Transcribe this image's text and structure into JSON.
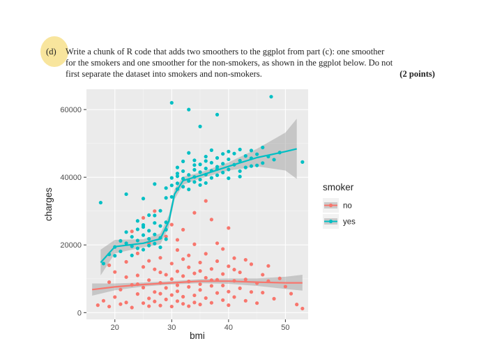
{
  "question": {
    "label": "(d)",
    "line1": "Write a chunk of R code that adds two smoothers to the ggplot from part (c): one smoother",
    "line2": "for the smokers and one smoother for the non-smokers, as shown in the ggplot below. Do not",
    "line3": "first separate the dataset into smokers and non-smokers.",
    "points": "(2 points)"
  },
  "colors": {
    "no": "#F8766D",
    "yes": "#00BFC4",
    "panel": "#EBEBEB",
    "ribbon": "#999999"
  },
  "chart_data": {
    "type": "scatter",
    "xlabel": "bmi",
    "ylabel": "charges",
    "xlim": [
      15,
      54
    ],
    "ylim": [
      -2000,
      66000
    ],
    "x_ticks": [
      20,
      30,
      40,
      50
    ],
    "y_ticks": [
      0,
      20000,
      40000,
      60000
    ],
    "y_tick_labels": [
      "0",
      "20000",
      "40000",
      "60000"
    ],
    "grid": true,
    "legend": {
      "title": "smoker",
      "position": "right",
      "entries": [
        "no",
        "yes"
      ]
    },
    "series": [
      {
        "name": "no",
        "smooth": [
          [
            16,
            6800
          ],
          [
            20,
            7600
          ],
          [
            25,
            8300
          ],
          [
            30,
            8800
          ],
          [
            35,
            9300
          ],
          [
            40,
            9300
          ],
          [
            45,
            9000
          ],
          [
            50,
            8800
          ],
          [
            53,
            8800
          ]
        ],
        "ribbon": [
          [
            16,
            5000,
            8600
          ],
          [
            20,
            6600,
            8600
          ],
          [
            25,
            7700,
            8900
          ],
          [
            30,
            8300,
            9300
          ],
          [
            35,
            8700,
            9900
          ],
          [
            40,
            8500,
            10100
          ],
          [
            45,
            7900,
            10100
          ],
          [
            50,
            7000,
            10600
          ],
          [
            53,
            6500,
            11200
          ]
        ],
        "points": [
          [
            17,
            2200
          ],
          [
            18,
            3500
          ],
          [
            19,
            1800
          ],
          [
            19,
            9000
          ],
          [
            20,
            4600
          ],
          [
            20,
            12000
          ],
          [
            21,
            2500
          ],
          [
            21,
            6800
          ],
          [
            22,
            10500
          ],
          [
            22,
            15000
          ],
          [
            22,
            3000
          ],
          [
            23,
            8200
          ],
          [
            23,
            24000
          ],
          [
            23,
            1500
          ],
          [
            24,
            5500
          ],
          [
            24,
            17500
          ],
          [
            24,
            11000
          ],
          [
            25,
            2800
          ],
          [
            25,
            7400
          ],
          [
            25,
            28000
          ],
          [
            25,
            13500
          ],
          [
            26,
            4200
          ],
          [
            26,
            9600
          ],
          [
            26,
            20500
          ],
          [
            26,
            1900
          ],
          [
            27,
            6100
          ],
          [
            27,
            12800
          ],
          [
            27,
            3300
          ],
          [
            27,
            30000
          ],
          [
            28,
            8800
          ],
          [
            28,
            2100
          ],
          [
            28,
            16200
          ],
          [
            28,
            5600
          ],
          [
            29,
            11200
          ],
          [
            29,
            3900
          ],
          [
            29,
            7300
          ],
          [
            29,
            22500
          ],
          [
            30,
            1800
          ],
          [
            30,
            9900
          ],
          [
            30,
            14500
          ],
          [
            30,
            5200
          ],
          [
            30,
            26000
          ],
          [
            31,
            3400
          ],
          [
            31,
            8100
          ],
          [
            31,
            12200
          ],
          [
            31,
            18500
          ],
          [
            31,
            6300
          ],
          [
            32,
            2600
          ],
          [
            32,
            10800
          ],
          [
            32,
            4700
          ],
          [
            32,
            15800
          ],
          [
            32,
            24500
          ],
          [
            33,
            7600
          ],
          [
            33,
            1900
          ],
          [
            33,
            13400
          ],
          [
            33,
            9200
          ],
          [
            34,
            5100
          ],
          [
            34,
            11600
          ],
          [
            34,
            3000
          ],
          [
            34,
            20200
          ],
          [
            34,
            29500
          ],
          [
            35,
            8400
          ],
          [
            35,
            14800
          ],
          [
            35,
            2400
          ],
          [
            35,
            6700
          ],
          [
            36,
            10300
          ],
          [
            36,
            4300
          ],
          [
            36,
            17400
          ],
          [
            36,
            33000
          ],
          [
            37,
            7900
          ],
          [
            37,
            12900
          ],
          [
            37,
            2900
          ],
          [
            37,
            27500
          ],
          [
            38,
            5800
          ],
          [
            38,
            9700
          ],
          [
            38,
            15200
          ],
          [
            38,
            20500
          ],
          [
            39,
            3700
          ],
          [
            39,
            11400
          ],
          [
            39,
            8000
          ],
          [
            40,
            6200
          ],
          [
            40,
            13700
          ],
          [
            40,
            2200
          ],
          [
            40,
            25000
          ],
          [
            41,
            9400
          ],
          [
            41,
            4600
          ],
          [
            41,
            16100
          ],
          [
            42,
            7200
          ],
          [
            42,
            11900
          ],
          [
            43,
            3500
          ],
          [
            43,
            9800
          ],
          [
            44,
            14300
          ],
          [
            44,
            6100
          ],
          [
            45,
            8700
          ],
          [
            45,
            2800
          ],
          [
            46,
            11200
          ],
          [
            46,
            5900
          ],
          [
            47,
            9300
          ],
          [
            47,
            13800
          ],
          [
            48,
            4100
          ],
          [
            49,
            10100
          ],
          [
            50,
            7700
          ],
          [
            51,
            5600
          ],
          [
            52,
            2400
          ],
          [
            53,
            1200
          ],
          [
            19,
            14000
          ],
          [
            24,
            8400
          ],
          [
            26,
            15300
          ],
          [
            28,
            11900
          ],
          [
            31,
            21500
          ],
          [
            33,
            16900
          ],
          [
            35,
            12300
          ],
          [
            37,
            9600
          ],
          [
            39,
            18800
          ],
          [
            41,
            12700
          ],
          [
            43,
            15600
          ]
        ]
      },
      {
        "name": "yes",
        "smooth": [
          [
            17.5,
            14800
          ],
          [
            20,
            19500
          ],
          [
            25,
            20500
          ],
          [
            28,
            21800
          ],
          [
            29.5,
            27000
          ],
          [
            30.5,
            35000
          ],
          [
            32,
            39000
          ],
          [
            35,
            40500
          ],
          [
            40,
            43200
          ],
          [
            45,
            45800
          ],
          [
            50,
            47600
          ],
          [
            52,
            48400
          ]
        ],
        "ribbon": [
          [
            17.5,
            11000,
            18600
          ],
          [
            20,
            17500,
            21500
          ],
          [
            25,
            19300,
            21700
          ],
          [
            28,
            20200,
            23400
          ],
          [
            29.5,
            25200,
            28800
          ],
          [
            30.5,
            33500,
            36500
          ],
          [
            32,
            37800,
            40200
          ],
          [
            35,
            39600,
            41400
          ],
          [
            40,
            42000,
            44400
          ],
          [
            45,
            43200,
            48400
          ],
          [
            50,
            42000,
            53200
          ],
          [
            52,
            39500,
            57300
          ]
        ],
        "points": [
          [
            17.5,
            32500
          ],
          [
            18,
            14500
          ],
          [
            19,
            17200
          ],
          [
            20,
            16800
          ],
          [
            20,
            19400
          ],
          [
            21,
            21200
          ],
          [
            21,
            18100
          ],
          [
            22,
            20500
          ],
          [
            22,
            23800
          ],
          [
            22,
            35000
          ],
          [
            23,
            19600
          ],
          [
            23,
            22400
          ],
          [
            23,
            16900
          ],
          [
            24,
            24600
          ],
          [
            24,
            21300
          ],
          [
            24,
            27100
          ],
          [
            24,
            19000
          ],
          [
            25,
            22900
          ],
          [
            25,
            18600
          ],
          [
            25,
            25300
          ],
          [
            25,
            33700
          ],
          [
            26,
            21800
          ],
          [
            26,
            24200
          ],
          [
            26,
            19800
          ],
          [
            26,
            28800
          ],
          [
            27,
            23100
          ],
          [
            27,
            20400
          ],
          [
            27,
            26500
          ],
          [
            27,
            38000
          ],
          [
            28,
            22100
          ],
          [
            28,
            19300
          ],
          [
            28,
            25600
          ],
          [
            28,
            30100
          ],
          [
            29,
            24500
          ],
          [
            29,
            21700
          ],
          [
            29,
            33900
          ],
          [
            29,
            36800
          ],
          [
            30,
            34200
          ],
          [
            30,
            37600
          ],
          [
            30,
            39800
          ],
          [
            30,
            62000
          ],
          [
            31,
            36500
          ],
          [
            31,
            40300
          ],
          [
            31,
            38200
          ],
          [
            31,
            42900
          ],
          [
            32,
            39600
          ],
          [
            32,
            37200
          ],
          [
            32,
            41800
          ],
          [
            32,
            44700
          ],
          [
            33,
            38900
          ],
          [
            33,
            40700
          ],
          [
            33,
            36400
          ],
          [
            33,
            47200
          ],
          [
            33,
            60000
          ],
          [
            34,
            40100
          ],
          [
            34,
            38600
          ],
          [
            34,
            42200
          ],
          [
            34,
            45000
          ],
          [
            35,
            39300
          ],
          [
            35,
            41500
          ],
          [
            35,
            37700
          ],
          [
            35,
            43800
          ],
          [
            35,
            55000
          ],
          [
            36,
            40800
          ],
          [
            36,
            38300
          ],
          [
            36,
            42600
          ],
          [
            36,
            46100
          ],
          [
            37,
            39800
          ],
          [
            37,
            41900
          ],
          [
            37,
            44300
          ],
          [
            37,
            48000
          ],
          [
            38,
            40600
          ],
          [
            38,
            43100
          ],
          [
            38,
            45700
          ],
          [
            38,
            58500
          ],
          [
            39,
            41400
          ],
          [
            39,
            44000
          ],
          [
            39,
            46900
          ],
          [
            40,
            42300
          ],
          [
            40,
            39700
          ],
          [
            40,
            45300
          ],
          [
            41,
            43700
          ],
          [
            41,
            47000
          ],
          [
            42,
            41800
          ],
          [
            42,
            44900
          ],
          [
            42,
            48200
          ],
          [
            43,
            46300
          ],
          [
            43,
            42900
          ],
          [
            44,
            45600
          ],
          [
            44,
            47900
          ],
          [
            45,
            43500
          ],
          [
            45,
            46800
          ],
          [
            46,
            44200
          ],
          [
            46,
            48800
          ],
          [
            47,
            46100
          ],
          [
            47.5,
            63800
          ],
          [
            48,
            45200
          ],
          [
            49,
            47300
          ],
          [
            53,
            44500
          ],
          [
            25,
            25900
          ],
          [
            27,
            28700
          ],
          [
            29,
            26700
          ],
          [
            31,
            41100
          ],
          [
            34,
            43600
          ],
          [
            36,
            44800
          ],
          [
            38,
            42400
          ],
          [
            40,
            47600
          ],
          [
            42,
            40200
          ],
          [
            44,
            43300
          ]
        ]
      }
    ]
  }
}
